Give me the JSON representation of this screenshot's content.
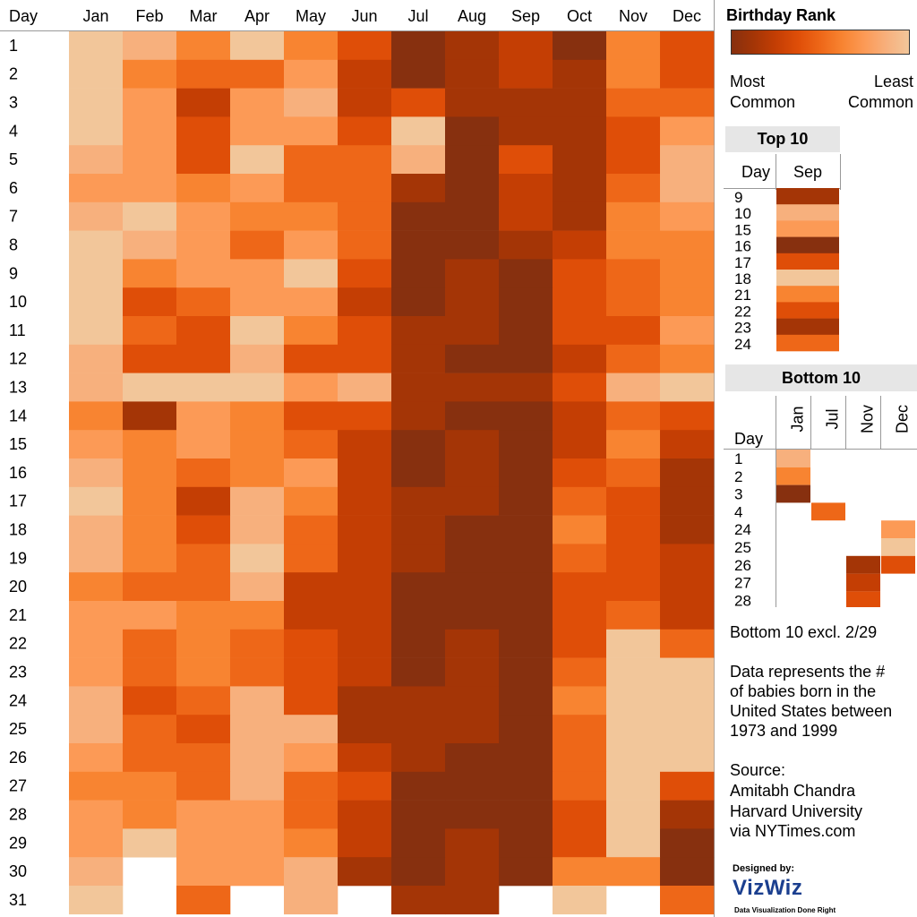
{
  "heatmap": {
    "day_header": "Day",
    "months": [
      "Jan",
      "Feb",
      "Mar",
      "Apr",
      "May",
      "Jun",
      "Jul",
      "Aug",
      "Sep",
      "Oct",
      "Nov",
      "Dec"
    ],
    "days": [
      "1",
      "2",
      "3",
      "4",
      "5",
      "6",
      "7",
      "8",
      "9",
      "10",
      "11",
      "12",
      "13",
      "14",
      "15",
      "16",
      "17",
      "18",
      "19",
      "20",
      "21",
      "22",
      "23",
      "24",
      "25",
      "26",
      "27",
      "28",
      "29",
      "30",
      "31"
    ],
    "palette": [
      "#f2c69a",
      "#f7b07d",
      "#fc9a56",
      "#f88431",
      "#ee6718",
      "#df4e08",
      "#c43e04",
      "#a43506",
      "#87300f"
    ]
  },
  "chart_data": {
    "type": "heatmap",
    "title": "",
    "xlabel": "",
    "ylabel": "Day",
    "legend_title": "Birthday Rank",
    "legend_low_label": "Most Common",
    "legend_high_label": "Least Common",
    "value_scale": "rank level 0 (least common, light) to 8 (most common, dark)",
    "x": [
      "Jan",
      "Feb",
      "Mar",
      "Apr",
      "May",
      "Jun",
      "Jul",
      "Aug",
      "Sep",
      "Oct",
      "Nov",
      "Dec"
    ],
    "y": [
      1,
      2,
      3,
      4,
      5,
      6,
      7,
      8,
      9,
      10,
      11,
      12,
      13,
      14,
      15,
      16,
      17,
      18,
      19,
      20,
      21,
      22,
      23,
      24,
      25,
      26,
      27,
      28,
      29,
      30,
      31
    ],
    "values": [
      [
        0,
        1,
        3,
        0,
        3,
        5,
        8,
        7,
        6,
        8,
        3,
        5
      ],
      [
        0,
        3,
        4,
        4,
        2,
        6,
        8,
        7,
        6,
        7,
        3,
        5
      ],
      [
        0,
        2,
        6,
        2,
        1,
        6,
        5,
        7,
        7,
        7,
        4,
        4
      ],
      [
        0,
        2,
        5,
        2,
        2,
        5,
        0,
        8,
        7,
        7,
        5,
        2
      ],
      [
        1,
        2,
        5,
        0,
        4,
        4,
        1,
        8,
        5,
        7,
        5,
        1
      ],
      [
        2,
        2,
        3,
        2,
        4,
        4,
        7,
        8,
        6,
        7,
        4,
        1
      ],
      [
        1,
        0,
        2,
        3,
        3,
        4,
        8,
        8,
        6,
        7,
        3,
        2
      ],
      [
        0,
        1,
        2,
        4,
        2,
        4,
        8,
        8,
        7,
        6,
        3,
        3
      ],
      [
        0,
        3,
        2,
        2,
        0,
        5,
        8,
        7,
        8,
        5,
        4,
        3
      ],
      [
        0,
        5,
        4,
        2,
        2,
        6,
        8,
        7,
        8,
        5,
        4,
        3
      ],
      [
        0,
        4,
        5,
        0,
        3,
        5,
        7,
        7,
        8,
        5,
        5,
        2
      ],
      [
        1,
        5,
        5,
        1,
        5,
        5,
        7,
        8,
        8,
        6,
        4,
        3
      ],
      [
        1,
        0,
        0,
        0,
        2,
        1,
        7,
        7,
        7,
        5,
        1,
        0
      ],
      [
        3,
        7,
        2,
        3,
        5,
        5,
        7,
        8,
        8,
        6,
        4,
        5
      ],
      [
        2,
        3,
        2,
        3,
        4,
        6,
        8,
        7,
        8,
        6,
        3,
        6
      ],
      [
        1,
        3,
        4,
        3,
        2,
        6,
        8,
        7,
        8,
        5,
        4,
        7
      ],
      [
        0,
        3,
        6,
        1,
        3,
        6,
        7,
        7,
        8,
        4,
        5,
        7
      ],
      [
        1,
        3,
        5,
        1,
        4,
        6,
        7,
        8,
        8,
        3,
        5,
        7
      ],
      [
        1,
        3,
        4,
        0,
        4,
        6,
        7,
        8,
        8,
        4,
        5,
        6
      ],
      [
        3,
        4,
        4,
        1,
        6,
        6,
        8,
        8,
        8,
        5,
        5,
        6
      ],
      [
        2,
        2,
        3,
        3,
        6,
        6,
        8,
        8,
        8,
        5,
        4,
        6
      ],
      [
        2,
        4,
        3,
        4,
        5,
        6,
        8,
        7,
        8,
        5,
        0,
        4
      ],
      [
        2,
        4,
        3,
        4,
        5,
        6,
        8,
        7,
        8,
        4,
        0,
        0
      ],
      [
        1,
        5,
        4,
        1,
        5,
        7,
        7,
        7,
        8,
        3,
        0,
        0
      ],
      [
        1,
        4,
        5,
        1,
        1,
        7,
        7,
        7,
        8,
        4,
        0,
        0
      ],
      [
        2,
        4,
        4,
        1,
        2,
        6,
        7,
        8,
        8,
        4,
        0,
        0
      ],
      [
        3,
        3,
        4,
        1,
        4,
        5,
        8,
        8,
        8,
        4,
        0,
        5
      ],
      [
        2,
        3,
        2,
        2,
        4,
        6,
        8,
        8,
        8,
        5,
        0,
        7
      ],
      [
        2,
        0,
        2,
        2,
        3,
        6,
        8,
        7,
        8,
        5,
        0,
        8
      ],
      [
        1,
        null,
        2,
        2,
        1,
        7,
        8,
        7,
        8,
        3,
        3,
        8
      ],
      [
        0,
        null,
        4,
        null,
        1,
        null,
        7,
        7,
        null,
        0,
        null,
        4
      ]
    ],
    "top10": {
      "title": "Top 10",
      "day_header": "Day",
      "month": "Sep",
      "days": [
        "9",
        "10",
        "15",
        "16",
        "17",
        "18",
        "21",
        "22",
        "23",
        "24"
      ],
      "values": [
        7,
        1,
        2,
        8,
        5,
        0,
        3,
        5,
        7,
        4
      ]
    },
    "bottom10": {
      "title": "Bottom 10",
      "day_header": "Day",
      "months": [
        "Jan",
        "Jul",
        "Nov",
        "Dec"
      ],
      "days": [
        "1",
        "2",
        "3",
        "4",
        "24",
        "25",
        "26",
        "27",
        "28"
      ],
      "cells": [
        {
          "day": "1",
          "month": "Jan",
          "value": 1
        },
        {
          "day": "2",
          "month": "Jan",
          "value": 3
        },
        {
          "day": "3",
          "month": "Jan",
          "value": 8
        },
        {
          "day": "4",
          "month": "Jul",
          "value": 4
        },
        {
          "day": "24",
          "month": "Dec",
          "value": 2
        },
        {
          "day": "25",
          "month": "Dec",
          "value": 0
        },
        {
          "day": "26",
          "month": "Nov",
          "value": 7
        },
        {
          "day": "26",
          "month": "Dec",
          "value": 5
        },
        {
          "day": "27",
          "month": "Nov",
          "value": 6
        },
        {
          "day": "28",
          "month": "Nov",
          "value": 5
        }
      ]
    }
  },
  "notes": {
    "bottom_excl": "Bottom 10 excl. 2/29",
    "desc_lines": [
      "Data represents the #",
      "of babies born in the",
      "United States between",
      "1973 and 1999"
    ],
    "source_lines": [
      "Source:",
      "Amitabh Chandra",
      "Harvard University",
      "via NYTimes.com"
    ],
    "designed_by": "Designed by:",
    "logo": "VizWiz",
    "tagline": "Data Visualization Done Right"
  },
  "colors": {
    "legend_dark": "#87300f",
    "legend_light": "#f2c69a",
    "header_bg": "#e6e6e6",
    "logo_blue": "#1b3f8f"
  }
}
